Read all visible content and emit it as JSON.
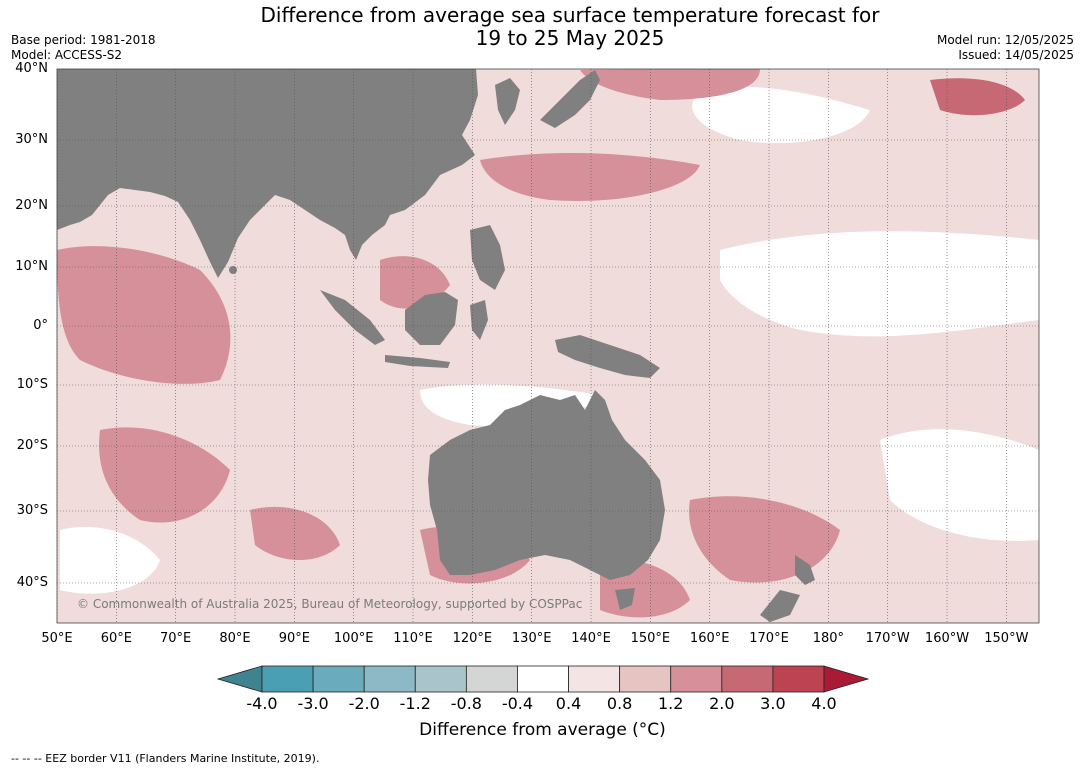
{
  "header": {
    "title_line1": "Difference from average sea surface temperature forecast for",
    "title_line2": "19 to 25 May 2025",
    "base_period": "Base period: 1981-2018",
    "model": "Model: ACCESS-S2",
    "model_run": "Model run: 12/05/2025",
    "issued": "Issued: 14/05/2025"
  },
  "map": {
    "lat_labels": [
      "40°N",
      "30°N",
      "20°N",
      "10°N",
      "0°",
      "10°S",
      "20°S",
      "30°S",
      "40°S"
    ],
    "lon_labels": [
      "50°E",
      "60°E",
      "70°E",
      "80°E",
      "90°E",
      "100°E",
      "110°E",
      "120°E",
      "130°E",
      "140°E",
      "150°E",
      "160°E",
      "170°E",
      "180°",
      "170°W",
      "160°W",
      "150°W"
    ],
    "land_color": "#808080",
    "copyright": "© Commonwealth of Australia 2025, Bureau of Meteorology, supported by COSPPac"
  },
  "colorbar": {
    "ticks": [
      "-4.0",
      "-3.0",
      "-2.0",
      "-1.2",
      "-0.8",
      "-0.4",
      "0.4",
      "0.8",
      "1.2",
      "2.0",
      "3.0",
      "4.0"
    ],
    "colors": [
      "#3e838f",
      "#4a9fb2",
      "#6aacbc",
      "#8cb9c5",
      "#a9c5ca",
      "#d4d6d6",
      "#ffffff",
      "#f3e5e4",
      "#e6c4c2",
      "#d6909a",
      "#c76875",
      "#bd4252",
      "#aa1a35"
    ],
    "title": "Difference from average (°C)"
  },
  "footer": {
    "legend": "--  --  -- EEZ border V11 (Flanders Marine Institute, 2019)."
  }
}
